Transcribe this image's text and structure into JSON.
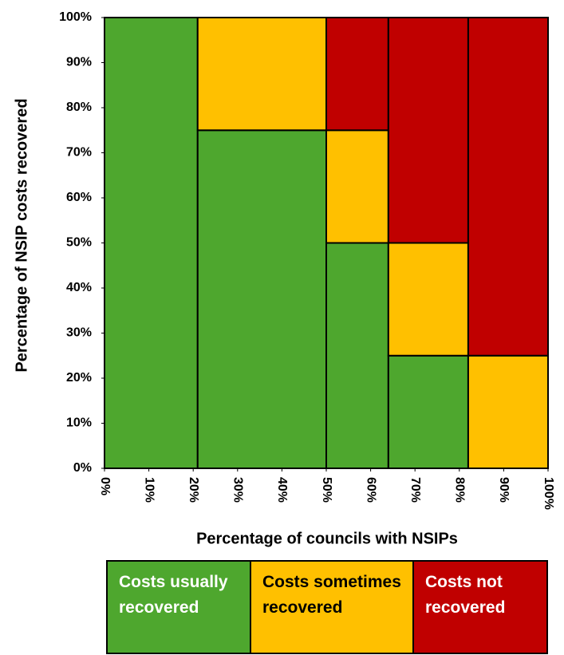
{
  "chart_data": {
    "type": "mosaic",
    "x_label": "Percentage of councils with NSIPs",
    "y_label": "Percentage of NSIP costs recovered",
    "widths": [
      21,
      29,
      14,
      18,
      18
    ],
    "series": [
      {
        "name": "Costs usually recovered",
        "color": "#4ea72e",
        "text_color": "#ffffff",
        "values": [
          100,
          75,
          50,
          25,
          0
        ]
      },
      {
        "name": "Costs sometimes recovered",
        "color": "#ffc000",
        "text_color": "#000000",
        "values": [
          0,
          25,
          25,
          25,
          25
        ]
      },
      {
        "name": "Costs not recovered",
        "color": "#c00000",
        "text_color": "#ffffff",
        "values": [
          0,
          0,
          25,
          50,
          75
        ]
      }
    ],
    "xlim": [
      0,
      100
    ],
    "ylim": [
      0,
      100
    ],
    "xticks": [
      {
        "value": 0,
        "label": "0%"
      },
      {
        "value": 10,
        "label": "10%"
      },
      {
        "value": 20,
        "label": "20%"
      },
      {
        "value": 30,
        "label": "30%"
      },
      {
        "value": 40,
        "label": "40%"
      },
      {
        "value": 50,
        "label": "50%"
      },
      {
        "value": 60,
        "label": "60%"
      },
      {
        "value": 70,
        "label": "70%"
      },
      {
        "value": 80,
        "label": "80%"
      },
      {
        "value": 90,
        "label": "90%"
      },
      {
        "value": 100,
        "label": "100%"
      }
    ],
    "yticks": [
      {
        "value": 0,
        "label": "0%"
      },
      {
        "value": 10,
        "label": "10%"
      },
      {
        "value": 20,
        "label": "20%"
      },
      {
        "value": 30,
        "label": "30%"
      },
      {
        "value": 40,
        "label": "40%"
      },
      {
        "value": 50,
        "label": "50%"
      },
      {
        "value": 60,
        "label": "60%"
      },
      {
        "value": 70,
        "label": "70%"
      },
      {
        "value": 80,
        "label": "80%"
      },
      {
        "value": 90,
        "label": "90%"
      },
      {
        "value": 100,
        "label": "100%"
      }
    ]
  }
}
